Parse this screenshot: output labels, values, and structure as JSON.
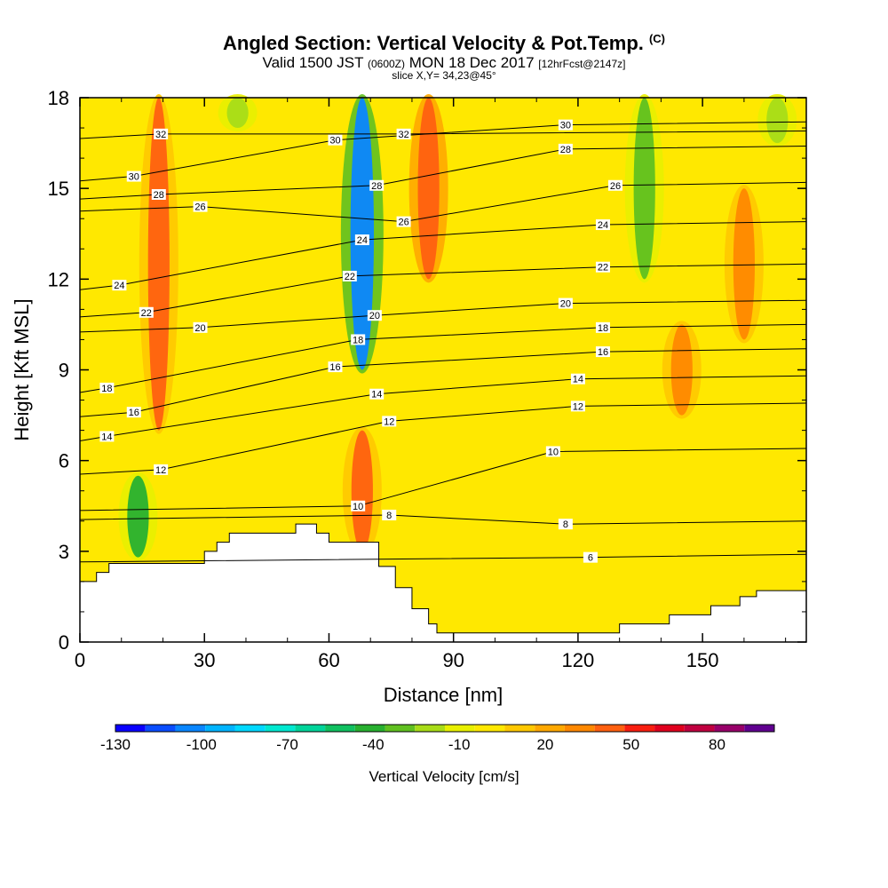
{
  "header": {
    "title": "Angled Section: Vertical Velocity & Pot.Temp.",
    "title_units": "(C)",
    "subtitle_a": "Valid 1500 JST",
    "subtitle_utc": "(0600Z)",
    "subtitle_b": "MON 18 Dec 2017",
    "subtitle_fcst": "[12hrFcst@2147z]",
    "slice": "slice X,Y= 34,23@45°"
  },
  "chart_data": {
    "type": "heatmap",
    "xlabel": "Distance [nm]",
    "ylabel": "Height [Kft MSL]",
    "xlim": [
      0,
      175
    ],
    "ylim": [
      0,
      18
    ],
    "x_ticks": [
      0,
      30,
      60,
      90,
      120,
      150
    ],
    "y_ticks": [
      0,
      3,
      6,
      9,
      12,
      15,
      18
    ],
    "colorbar": {
      "label": "Vertical Velocity [cm/s]",
      "tick_labels": [
        "-130",
        "-100",
        "-70",
        "-40",
        "-10",
        "20",
        "50",
        "80"
      ],
      "tick_values": [
        -130,
        -100,
        -70,
        -40,
        -10,
        20,
        50,
        80
      ],
      "range": [
        -130,
        100
      ],
      "colors": [
        "#0a00ff",
        "#0a4dff",
        "#0a86ff",
        "#00b4ff",
        "#00d8ff",
        "#00e8d0",
        "#00d49a",
        "#10c060",
        "#28b030",
        "#60c020",
        "#a8dc18",
        "#e8f000",
        "#ffe800",
        "#ffc800",
        "#ffa800",
        "#ff8800",
        "#ff6010",
        "#f81e10",
        "#e0001e",
        "#c00040",
        "#98006a",
        "#600090"
      ]
    },
    "background_value_cm_s": 5,
    "velocity_features": [
      {
        "kind": "updraft",
        "x_center": 19,
        "y_range": [
          7,
          18
        ],
        "value": 40
      },
      {
        "kind": "downdraft",
        "x_center": 68,
        "y_range": [
          9,
          18
        ],
        "value": -100
      },
      {
        "kind": "updraft",
        "x_center": 84,
        "y_range": [
          12,
          18
        ],
        "value": 45
      },
      {
        "kind": "updraft",
        "x_center": 68,
        "y_range": [
          3,
          7
        ],
        "value": 40
      },
      {
        "kind": "downdraft",
        "x_center": 14,
        "y_range": [
          2.8,
          5.5
        ],
        "value": -40
      },
      {
        "kind": "downdraft",
        "x_center": 136,
        "y_range": [
          12,
          18
        ],
        "value": -35
      },
      {
        "kind": "downdraft",
        "x_center": 168,
        "y_range": [
          16.5,
          18
        ],
        "value": -25
      },
      {
        "kind": "downdraft",
        "x_center": 38,
        "y_range": [
          17,
          18
        ],
        "value": -20
      },
      {
        "kind": "updraft",
        "x_center": 160,
        "y_range": [
          10,
          15
        ],
        "value": 30
      },
      {
        "kind": "updraft",
        "x_center": 145,
        "y_range": [
          7.5,
          10.5
        ],
        "value": 35
      }
    ],
    "terrain": [
      [
        0,
        2
      ],
      [
        4,
        2
      ],
      [
        4,
        2.3
      ],
      [
        7,
        2.3
      ],
      [
        7,
        2.6
      ],
      [
        30,
        2.6
      ],
      [
        30,
        3
      ],
      [
        33,
        3
      ],
      [
        33,
        3.3
      ],
      [
        36,
        3.3
      ],
      [
        36,
        3.6
      ],
      [
        52,
        3.6
      ],
      [
        52,
        3.9
      ],
      [
        57,
        3.9
      ],
      [
        57,
        3.6
      ],
      [
        60,
        3.6
      ],
      [
        60,
        3.3
      ],
      [
        72,
        3.3
      ],
      [
        72,
        2.5
      ],
      [
        76,
        2.5
      ],
      [
        76,
        1.8
      ],
      [
        80,
        1.8
      ],
      [
        80,
        1.1
      ],
      [
        84,
        1.1
      ],
      [
        84,
        0.6
      ],
      [
        86,
        0.6
      ],
      [
        86,
        0.3
      ],
      [
        130,
        0.3
      ],
      [
        130,
        0.6
      ],
      [
        142,
        0.6
      ],
      [
        142,
        0.9
      ],
      [
        152,
        0.9
      ],
      [
        152,
        1.2
      ],
      [
        159,
        1.2
      ],
      [
        159,
        1.5
      ],
      [
        163,
        1.5
      ],
      [
        163,
        1.7
      ],
      [
        175,
        1.7
      ]
    ],
    "theta_contour_labels": [
      {
        "text": "32",
        "x": 19.5,
        "y": 16.8
      },
      {
        "text": "30",
        "x": 13,
        "y": 15.4
      },
      {
        "text": "28",
        "x": 19,
        "y": 14.8
      },
      {
        "text": "26",
        "x": 29,
        "y": 14.4
      },
      {
        "text": "24",
        "x": 9.5,
        "y": 11.8
      },
      {
        "text": "22",
        "x": 16,
        "y": 10.9
      },
      {
        "text": "20",
        "x": 29,
        "y": 10.4
      },
      {
        "text": "18",
        "x": 6.5,
        "y": 8.4
      },
      {
        "text": "16",
        "x": 13,
        "y": 7.6
      },
      {
        "text": "14",
        "x": 6.5,
        "y": 6.8
      },
      {
        "text": "12",
        "x": 19.5,
        "y": 5.7
      },
      {
        "text": "30",
        "x": 61.5,
        "y": 16.6
      },
      {
        "text": "32",
        "x": 78,
        "y": 16.8
      },
      {
        "text": "28",
        "x": 71.5,
        "y": 15.1
      },
      {
        "text": "26",
        "x": 78,
        "y": 13.9
      },
      {
        "text": "24",
        "x": 68,
        "y": 13.3
      },
      {
        "text": "22",
        "x": 65,
        "y": 12.1
      },
      {
        "text": "20",
        "x": 71,
        "y": 10.8
      },
      {
        "text": "18",
        "x": 67,
        "y": 10.0
      },
      {
        "text": "16",
        "x": 61.5,
        "y": 9.1
      },
      {
        "text": "14",
        "x": 71.5,
        "y": 8.2
      },
      {
        "text": "12",
        "x": 74.5,
        "y": 7.3
      },
      {
        "text": "10",
        "x": 67,
        "y": 4.5
      },
      {
        "text": "8",
        "x": 74.5,
        "y": 4.2
      },
      {
        "text": "30",
        "x": 117,
        "y": 17.1
      },
      {
        "text": "28",
        "x": 117,
        "y": 16.3
      },
      {
        "text": "26",
        "x": 129,
        "y": 15.1
      },
      {
        "text": "24",
        "x": 126,
        "y": 13.8
      },
      {
        "text": "22",
        "x": 126,
        "y": 12.4
      },
      {
        "text": "20",
        "x": 117,
        "y": 11.2
      },
      {
        "text": "18",
        "x": 126,
        "y": 10.4
      },
      {
        "text": "16",
        "x": 126,
        "y": 9.6
      },
      {
        "text": "14",
        "x": 120,
        "y": 8.7
      },
      {
        "text": "12",
        "x": 120,
        "y": 7.8
      },
      {
        "text": "10",
        "x": 114,
        "y": 6.3
      },
      {
        "text": "8",
        "x": 117,
        "y": 3.9
      },
      {
        "text": "6",
        "x": 123,
        "y": 2.8
      }
    ]
  }
}
